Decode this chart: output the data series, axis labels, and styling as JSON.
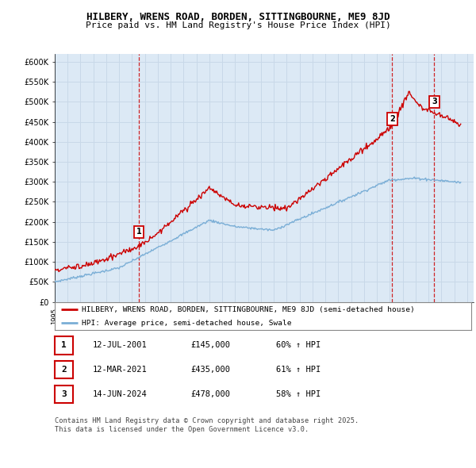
{
  "title": "HILBERY, WRENS ROAD, BORDEN, SITTINGBOURNE, ME9 8JD",
  "subtitle": "Price paid vs. HM Land Registry's House Price Index (HPI)",
  "ylim": [
    0,
    620000
  ],
  "yticks": [
    0,
    50000,
    100000,
    150000,
    200000,
    250000,
    300000,
    350000,
    400000,
    450000,
    500000,
    550000,
    600000
  ],
  "ytick_labels": [
    "£0",
    "£50K",
    "£100K",
    "£150K",
    "£200K",
    "£250K",
    "£300K",
    "£350K",
    "£400K",
    "£450K",
    "£500K",
    "£550K",
    "£600K"
  ],
  "xlim_start": 1995.0,
  "xlim_end": 2027.5,
  "background_color": "#ffffff",
  "grid_color": "#c8d8e8",
  "plot_bg_color": "#dce9f5",
  "red_line_color": "#cc0000",
  "blue_line_color": "#7aaed6",
  "vline_color": "#cc0000",
  "legend_label_red": "HILBERY, WRENS ROAD, BORDEN, SITTINGBOURNE, ME9 8JD (semi-detached house)",
  "legend_label_blue": "HPI: Average price, semi-detached house, Swale",
  "sales": [
    {
      "num": 1,
      "year": 2001.53,
      "price": 145000,
      "label": "1",
      "date": "12-JUL-2001",
      "pct": "60% ↑ HPI"
    },
    {
      "num": 2,
      "year": 2021.19,
      "price": 435000,
      "label": "2",
      "date": "12-MAR-2021",
      "pct": "61% ↑ HPI"
    },
    {
      "num": 3,
      "year": 2024.45,
      "price": 478000,
      "label": "3",
      "date": "14-JUN-2024",
      "pct": "58% ↑ HPI"
    }
  ],
  "footer": "Contains HM Land Registry data © Crown copyright and database right 2025.\nThis data is licensed under the Open Government Licence v3.0.",
  "table_rows": [
    [
      "1",
      "12-JUL-2001",
      "£145,000",
      "60% ↑ HPI"
    ],
    [
      "2",
      "12-MAR-2021",
      "£435,000",
      "61% ↑ HPI"
    ],
    [
      "3",
      "14-JUN-2024",
      "£478,000",
      "58% ↑ HPI"
    ]
  ]
}
